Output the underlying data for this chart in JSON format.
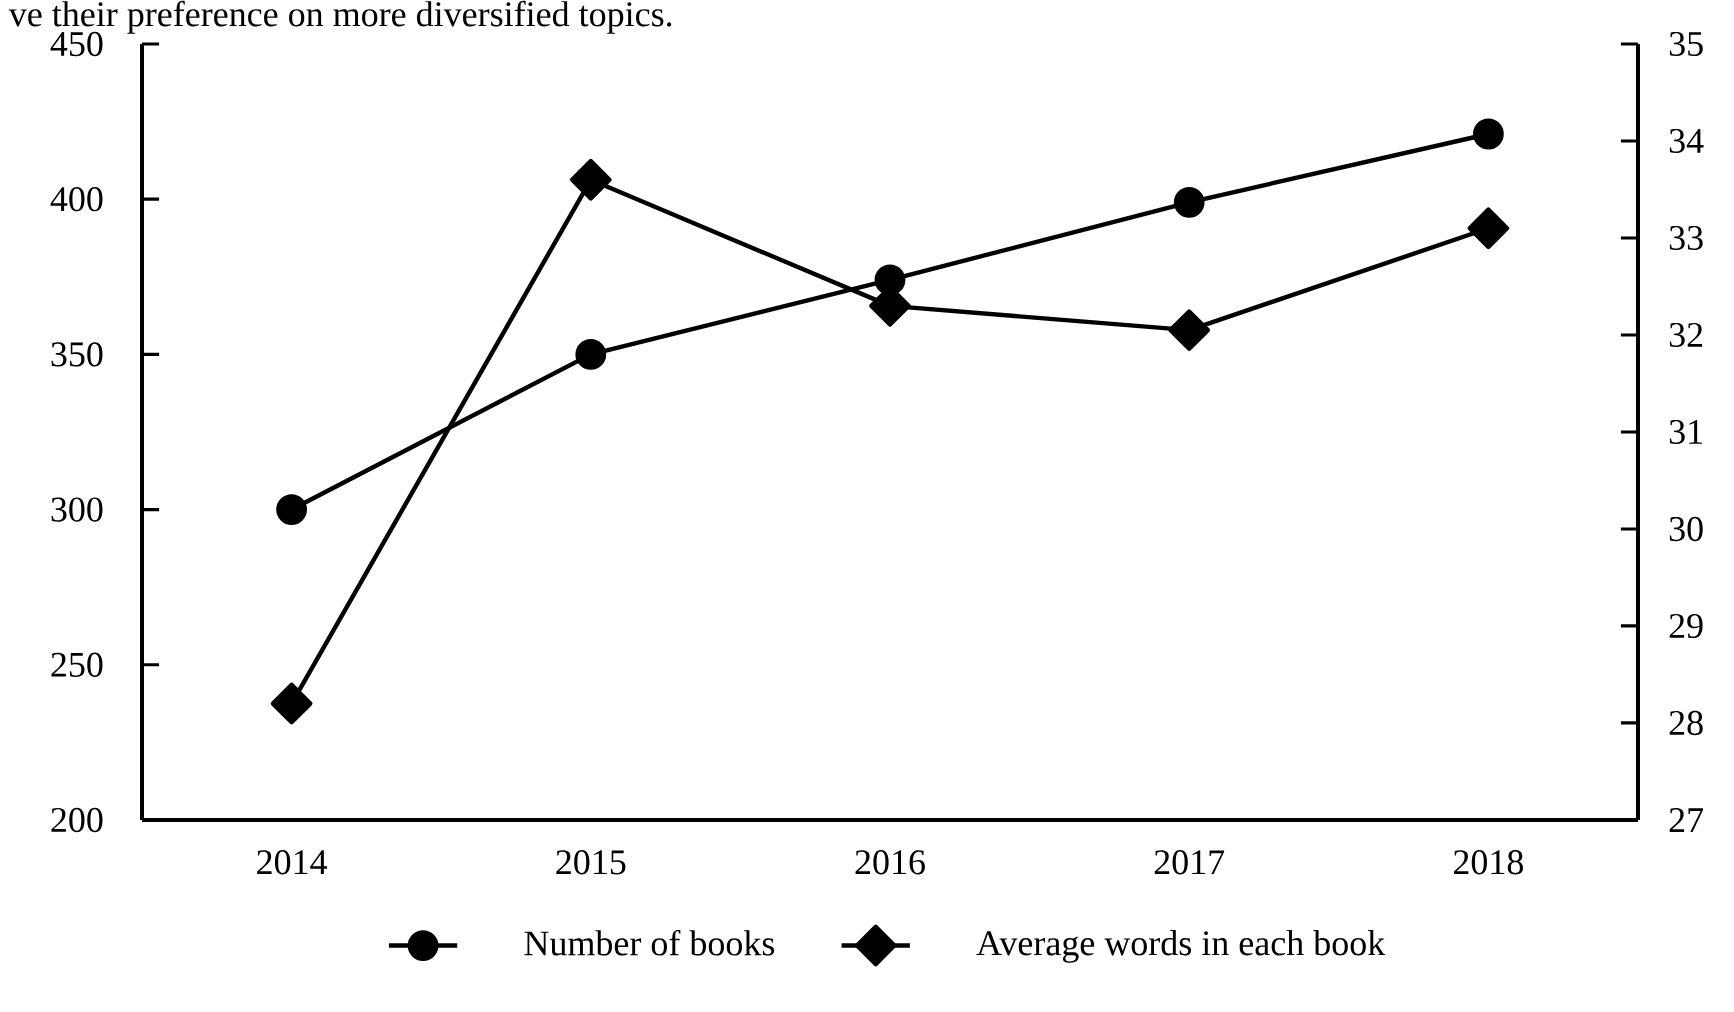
{
  "chart_data": {
    "type": "line",
    "annotations": [
      "ve their preference on more diversified topics."
    ],
    "categories": [
      "2014",
      "2015",
      "2016",
      "2017",
      "2018"
    ],
    "series": [
      {
        "name": "Number of books",
        "color": "#000000",
        "marker": "circle",
        "values": [
          300,
          350,
          374,
          399,
          421
        ]
      },
      {
        "name": "Average words in each book",
        "color": "#000000",
        "marker": "diamond",
        "axis": "y2",
        "values": [
          28.2,
          33.6,
          32.3,
          32.05,
          33.1
        ]
      }
    ],
    "ylim": [
      200,
      450
    ],
    "yticks": [
      200,
      250,
      300,
      350,
      400,
      450
    ],
    "y2lim": [
      27,
      35
    ],
    "y2ticks": [
      27,
      28,
      29,
      30,
      31,
      32,
      33,
      34,
      35
    ],
    "line_style": "solid",
    "legend": "bottom"
  }
}
